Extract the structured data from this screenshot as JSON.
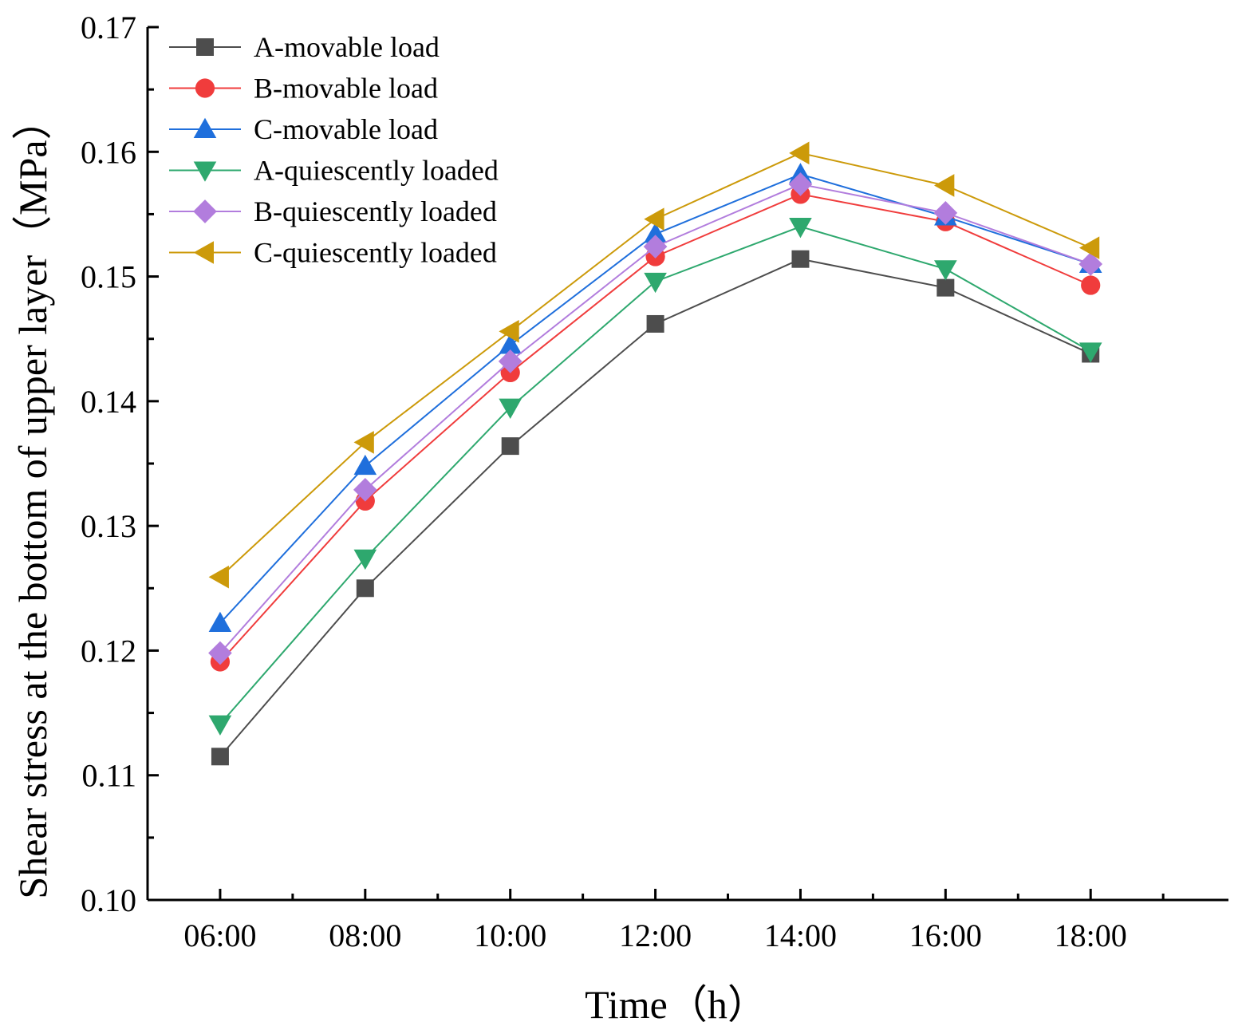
{
  "chart_data": {
    "type": "line",
    "title": "",
    "xlabel": "Time（h）",
    "ylabel": "Shear stress at the bottom of upper layer（MPa）",
    "categories": [
      "06:00",
      "08:00",
      "10:00",
      "12:00",
      "14:00",
      "16:00",
      "18:00"
    ],
    "x_range": [
      5,
      19.9
    ],
    "ylim": [
      0.1,
      0.17
    ],
    "yticks": [
      "0.10",
      "0.11",
      "0.12",
      "0.13",
      "0.14",
      "0.15",
      "0.16",
      "0.17"
    ],
    "grid": false,
    "legend_position": "top-left",
    "series": [
      {
        "name": "A-movable load",
        "color": "#4d4d4d",
        "marker": "square",
        "values": [
          0.1115,
          0.125,
          0.1364,
          0.1462,
          0.1514,
          0.1491,
          0.1438
        ]
      },
      {
        "name": "B-movable load",
        "color": "#f03c3c",
        "marker": "circle",
        "values": [
          0.1191,
          0.132,
          0.1423,
          0.1516,
          0.1566,
          0.1544,
          0.1493
        ]
      },
      {
        "name": "C-movable load",
        "color": "#1f6fdc",
        "marker": "triangle-up",
        "values": [
          0.1222,
          0.1348,
          0.1445,
          0.1534,
          0.1582,
          0.1548,
          0.151
        ]
      },
      {
        "name": "A-quiescently loaded",
        "color": "#2ea86e",
        "marker": "triangle-down",
        "values": [
          0.1141,
          0.1274,
          0.1395,
          0.1496,
          0.154,
          0.1506,
          0.144
        ]
      },
      {
        "name": "B-quiescently loaded",
        "color": "#b27ddd",
        "marker": "diamond",
        "values": [
          0.1198,
          0.1329,
          0.1432,
          0.1524,
          0.1574,
          0.1551,
          0.151
        ]
      },
      {
        "name": "C-quiescently loaded",
        "color": "#cc9a0a",
        "marker": "triangle-left",
        "values": [
          0.1259,
          0.1367,
          0.1456,
          0.1546,
          0.1599,
          0.1573,
          0.1523
        ]
      }
    ]
  }
}
